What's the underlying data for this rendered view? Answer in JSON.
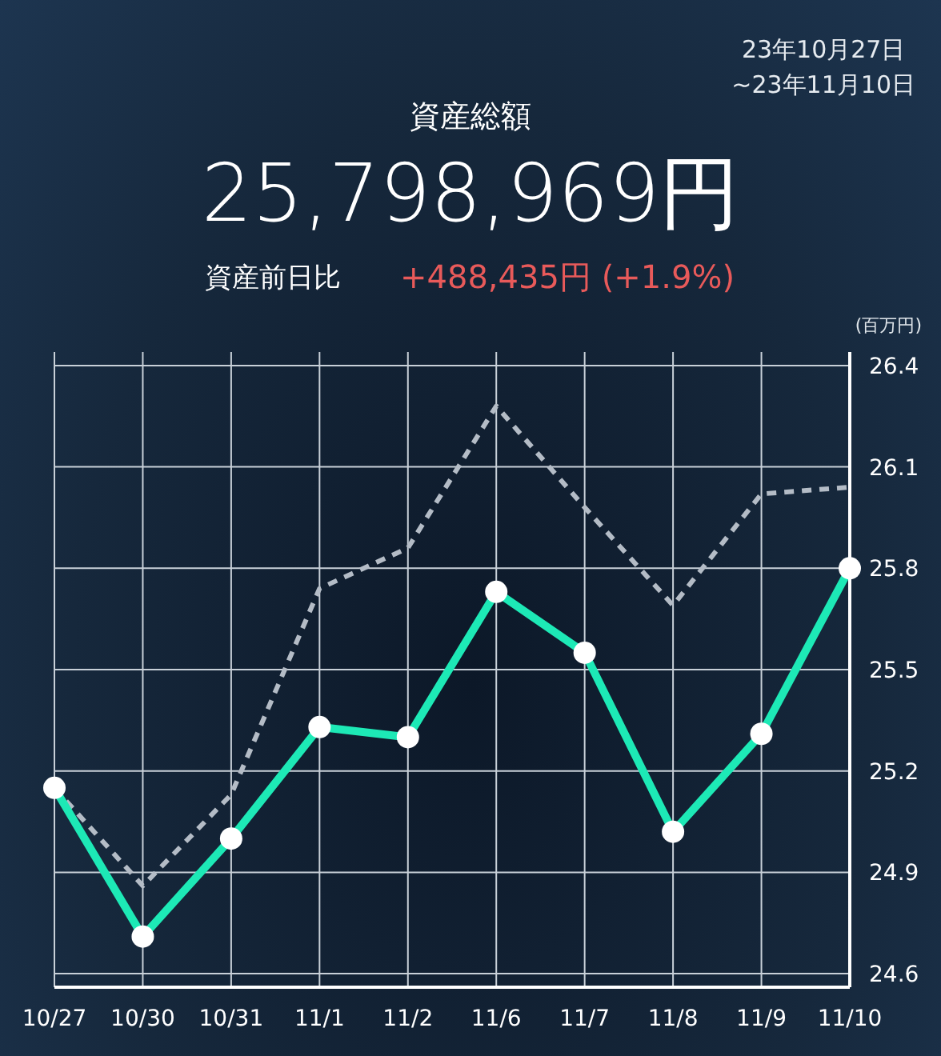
{
  "chart_data": {
    "type": "line",
    "title": "資産総額",
    "subtitle": "25,798,969円",
    "ylabel": "(百万円)",
    "annotations": [
      "23年10月27日",
      "~23年11月10日",
      "資産前日比",
      "+488,435円 (+1.9%)"
    ],
    "categories": [
      "10/27",
      "10/30",
      "10/31",
      "11/1",
      "11/2",
      "11/6",
      "11/7",
      "11/8",
      "11/9",
      "11/10"
    ],
    "series": [
      {
        "color": "#b4bcc6",
        "line_style": "dashed",
        "marker": "none",
        "values": [
          25.15,
          24.86,
          25.13,
          25.74,
          25.86,
          26.28,
          25.98,
          25.69,
          26.02,
          26.04
        ]
      },
      {
        "color": "#1de9b6",
        "line_style": "solid",
        "marker": "circle",
        "values": [
          25.15,
          24.71,
          25.0,
          25.33,
          25.3,
          25.73,
          25.55,
          25.02,
          25.31,
          25.8
        ]
      }
    ],
    "ylim": [
      24.56,
      26.44
    ],
    "yticks": [
      24.6,
      24.9,
      25.2,
      25.5,
      25.8,
      26.1,
      26.4
    ],
    "grid": true,
    "legend": false
  }
}
